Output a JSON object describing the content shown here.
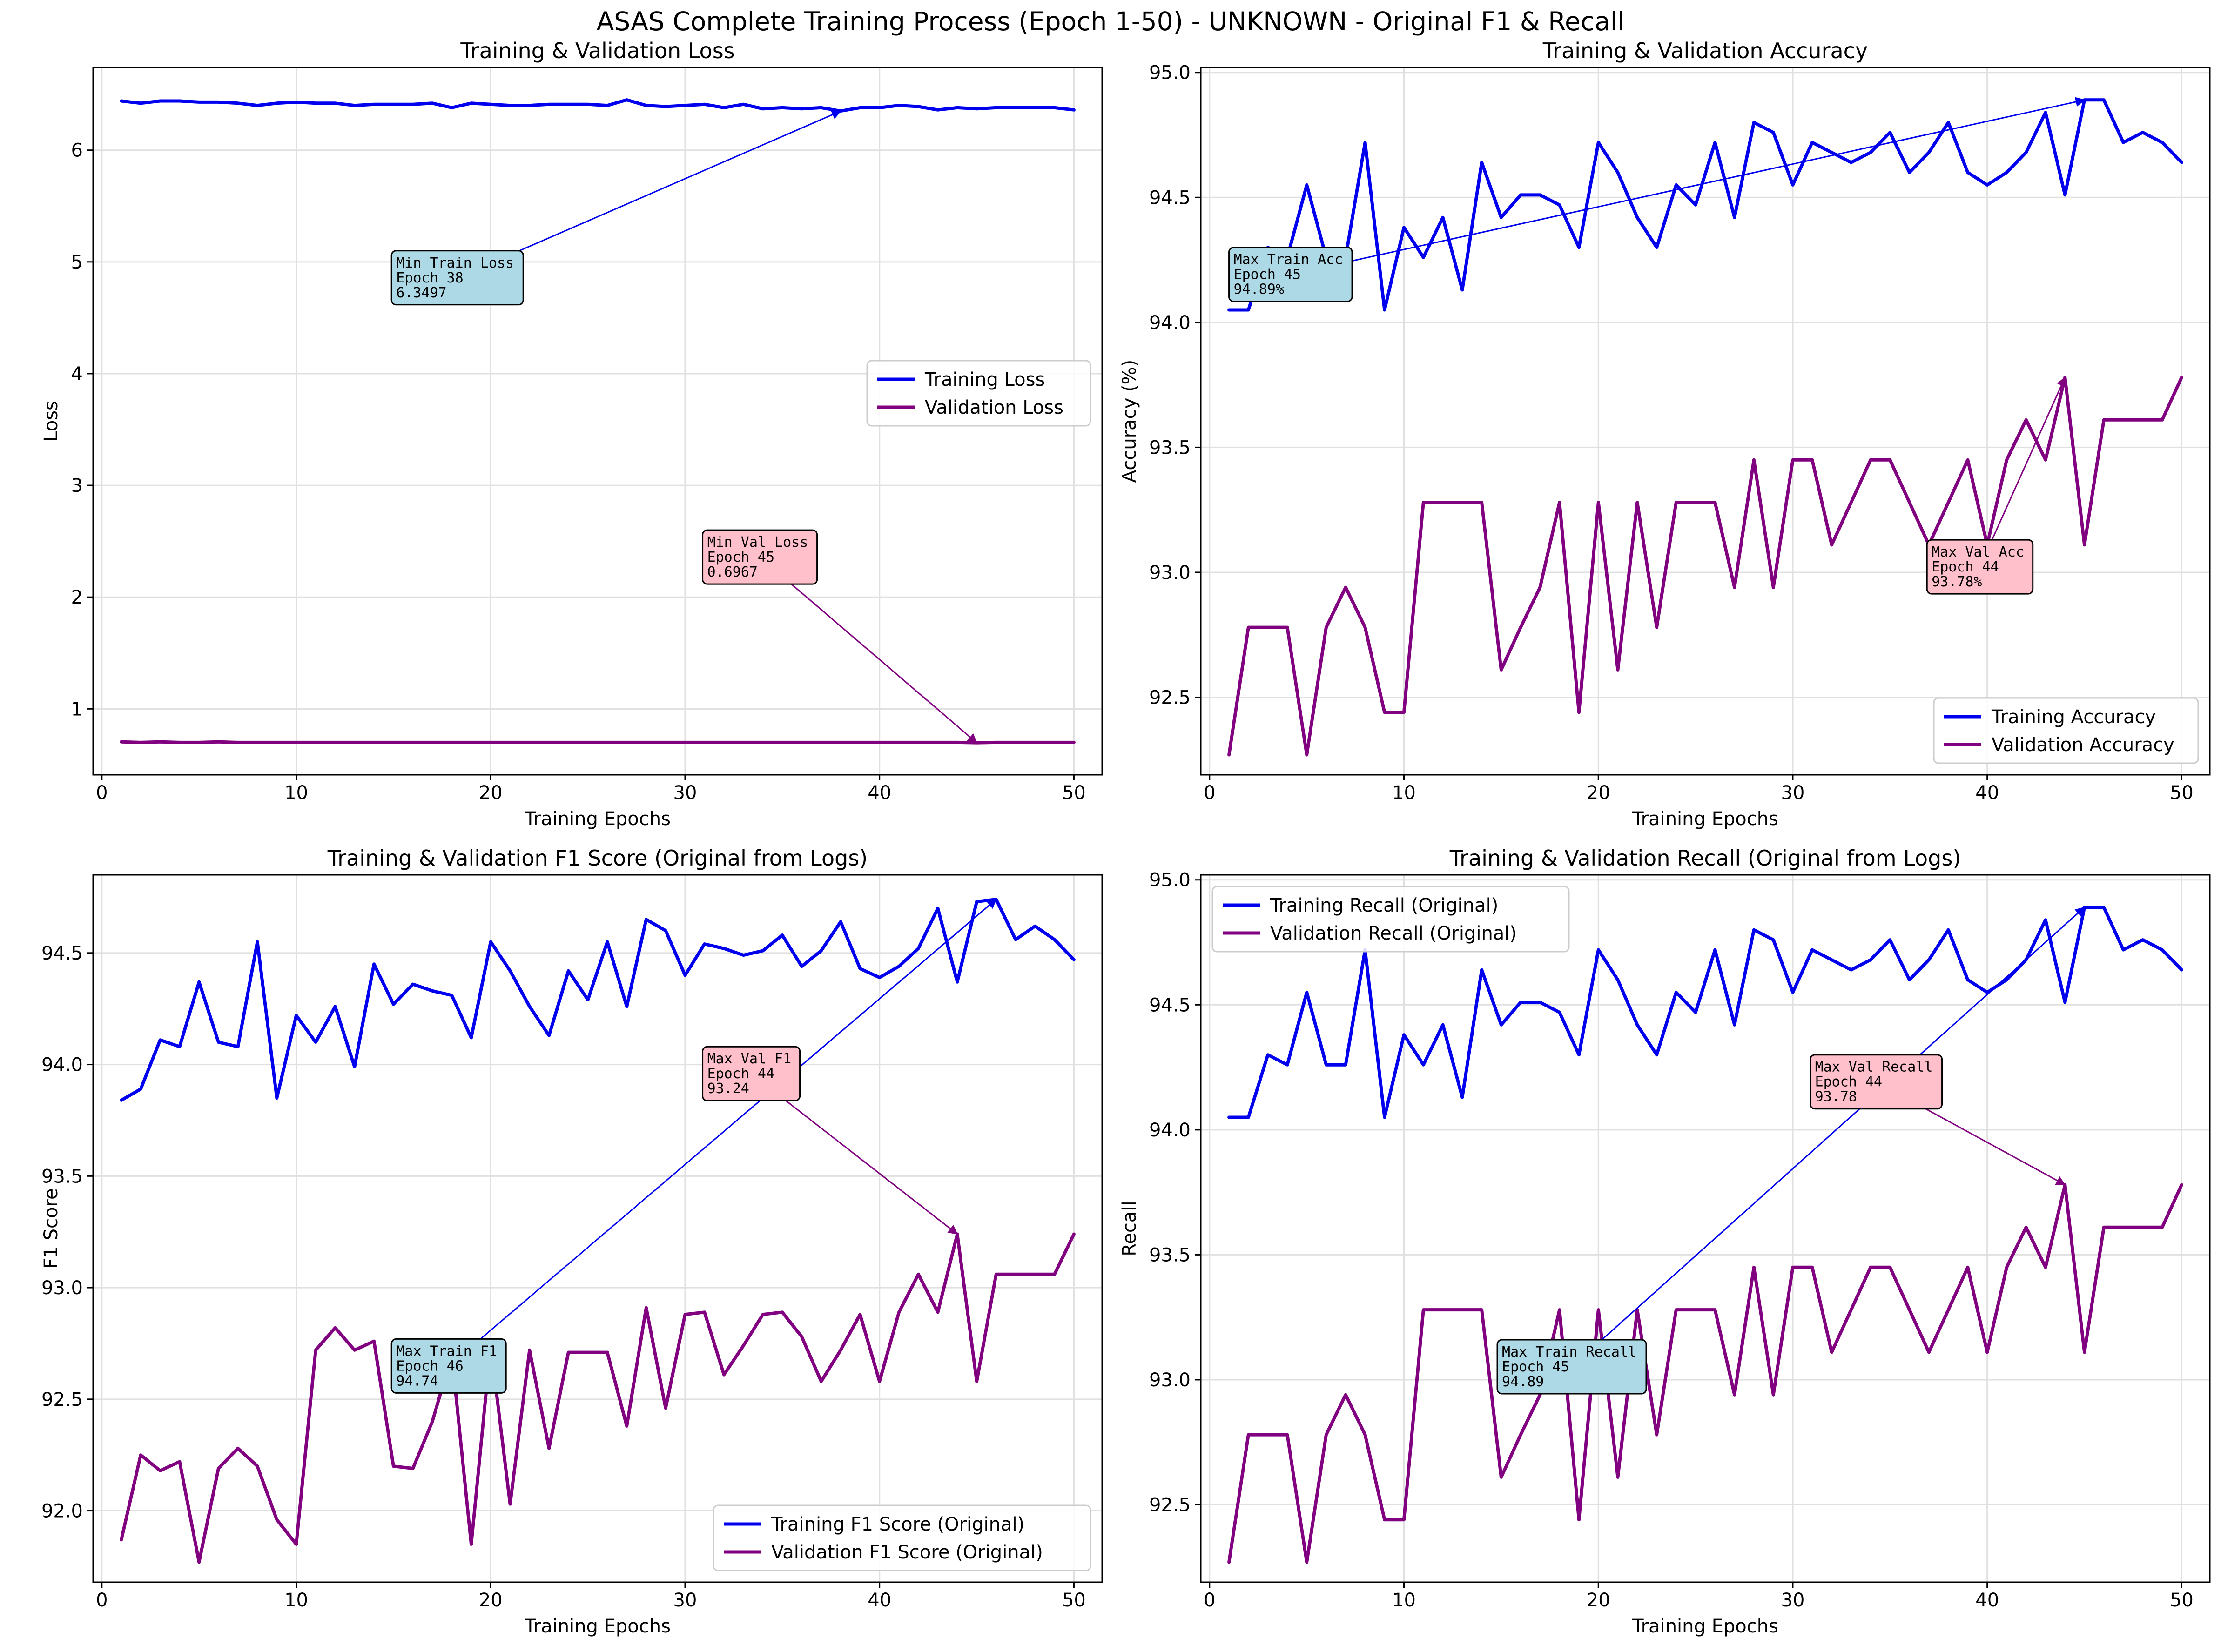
{
  "suptitle": "ASAS Complete Training Process (Epoch 1-50) - UNKNOWN - Original F1 & Recall",
  "colors": {
    "train": "#0000ee",
    "val": "#800080",
    "ann_train_bg": "#add8e6",
    "ann_val_bg": "#ffc0cb",
    "grid": "#e0e0e0"
  },
  "chart_data": [
    {
      "type": "line",
      "title": "Training & Validation Loss",
      "xlabel": "Training Epochs",
      "ylabel": "Loss",
      "xlim": [
        -0.45,
        51.45
      ],
      "ylim": [
        0.41,
        6.74
      ],
      "xticks": [
        0,
        10,
        20,
        30,
        40,
        50
      ],
      "yticks": [
        1,
        2,
        3,
        4,
        5,
        6
      ],
      "grid": true,
      "legend": "center-right",
      "series": [
        {
          "name": "Training Loss",
          "color": "train",
          "values": [
            6.44,
            6.42,
            6.44,
            6.44,
            6.43,
            6.43,
            6.42,
            6.4,
            6.42,
            6.43,
            6.42,
            6.42,
            6.4,
            6.41,
            6.41,
            6.41,
            6.42,
            6.38,
            6.42,
            6.41,
            6.4,
            6.4,
            6.41,
            6.41,
            6.41,
            6.4,
            6.45,
            6.4,
            6.39,
            6.4,
            6.41,
            6.38,
            6.41,
            6.37,
            6.38,
            6.37,
            6.38,
            6.35,
            6.38,
            6.38,
            6.4,
            6.39,
            6.36,
            6.38,
            6.37,
            6.38,
            6.38,
            6.38,
            6.38,
            6.36
          ]
        },
        {
          "name": "Validation Loss",
          "color": "val",
          "values": [
            0.705,
            0.7,
            0.705,
            0.7,
            0.7,
            0.705,
            0.7,
            0.7,
            0.7,
            0.7,
            0.7,
            0.7,
            0.7,
            0.7,
            0.7,
            0.7,
            0.7,
            0.7,
            0.7,
            0.7,
            0.7,
            0.7,
            0.7,
            0.7,
            0.7,
            0.7,
            0.7,
            0.7,
            0.7,
            0.7,
            0.7,
            0.7,
            0.7,
            0.7,
            0.7,
            0.7,
            0.7,
            0.7,
            0.7,
            0.7,
            0.7,
            0.7,
            0.7,
            0.7,
            0.697,
            0.7,
            0.7,
            0.7,
            0.7,
            0.7
          ]
        }
      ],
      "annotations": [
        {
          "text": [
            "Min Train Loss",
            "Epoch 38",
            "6.3497"
          ],
          "style": "train",
          "point": [
            38,
            6.3497
          ],
          "box_at": [
            14.9,
            5.1
          ]
        },
        {
          "text": [
            "Min Val Loss",
            "Epoch 45",
            "0.6967"
          ],
          "style": "val",
          "point": [
            45,
            0.6967
          ],
          "box_at": [
            30.9,
            2.6
          ]
        }
      ]
    },
    {
      "type": "line",
      "title": "Training & Validation Accuracy",
      "xlabel": "Training Epochs",
      "ylabel": "Accuracy (%)",
      "xlim": [
        -0.45,
        51.45
      ],
      "ylim": [
        92.19,
        95.02
      ],
      "xticks": [
        0,
        10,
        20,
        30,
        40,
        50
      ],
      "yticks": [
        92.5,
        93.0,
        93.5,
        94.0,
        94.5,
        95.0
      ],
      "ytick_labels": [
        "92.5",
        "93.0",
        "93.5",
        "94.0",
        "94.5",
        "95.0"
      ],
      "grid": true,
      "legend": "bottom-right",
      "series": [
        {
          "name": "Training Accuracy",
          "color": "train",
          "values": [
            94.05,
            94.05,
            94.3,
            94.26,
            94.55,
            94.26,
            94.26,
            94.72,
            94.05,
            94.38,
            94.26,
            94.42,
            94.13,
            94.64,
            94.42,
            94.51,
            94.51,
            94.47,
            94.3,
            94.72,
            94.6,
            94.42,
            94.3,
            94.55,
            94.47,
            94.72,
            94.42,
            94.8,
            94.76,
            94.55,
            94.72,
            94.68,
            94.64,
            94.68,
            94.76,
            94.6,
            94.68,
            94.8,
            94.6,
            94.55,
            94.6,
            94.68,
            94.84,
            94.51,
            94.89,
            94.89,
            94.72,
            94.76,
            94.72,
            94.64
          ]
        },
        {
          "name": "Validation Accuracy",
          "color": "val",
          "values": [
            92.27,
            92.78,
            92.78,
            92.78,
            92.27,
            92.78,
            92.94,
            92.78,
            92.44,
            92.44,
            93.28,
            93.28,
            93.28,
            93.28,
            92.61,
            92.78,
            92.94,
            93.28,
            92.44,
            93.28,
            92.61,
            93.28,
            92.78,
            93.28,
            93.28,
            93.28,
            92.94,
            93.45,
            92.94,
            93.45,
            93.45,
            93.11,
            93.28,
            93.45,
            93.45,
            93.28,
            93.11,
            93.28,
            93.45,
            93.11,
            93.45,
            93.61,
            93.45,
            93.78,
            93.11,
            93.61,
            93.61,
            93.61,
            93.61,
            93.78
          ]
        }
      ],
      "annotations": [
        {
          "text": [
            "Max Train Acc",
            "Epoch 45",
            "94.89%"
          ],
          "style": "train",
          "point": [
            45,
            94.89
          ],
          "box_at": [
            1.0,
            94.3
          ]
        },
        {
          "text": [
            "Max Val Acc",
            "Epoch 44",
            "93.78%"
          ],
          "style": "val",
          "point": [
            44,
            93.78
          ],
          "box_at": [
            36.9,
            93.13
          ]
        }
      ]
    },
    {
      "type": "line",
      "title": "Training & Validation F1 Score (Original from Logs)",
      "xlabel": "Training Epochs",
      "ylabel": "F1 Score",
      "xlim": [
        -0.45,
        51.45
      ],
      "ylim": [
        91.68,
        94.85
      ],
      "xticks": [
        0,
        10,
        20,
        30,
        40,
        50
      ],
      "yticks": [
        92.0,
        92.5,
        93.0,
        93.5,
        94.0,
        94.5
      ],
      "ytick_labels": [
        "92.0",
        "92.5",
        "93.0",
        "93.5",
        "94.0",
        "94.5"
      ],
      "grid": true,
      "legend": "bottom-right",
      "series": [
        {
          "name": "Training F1 Score (Original)",
          "color": "train",
          "values": [
            93.84,
            93.89,
            94.11,
            94.08,
            94.37,
            94.1,
            94.08,
            94.55,
            93.85,
            94.22,
            94.1,
            94.26,
            93.99,
            94.45,
            94.27,
            94.36,
            94.33,
            94.31,
            94.12,
            94.55,
            94.42,
            94.26,
            94.13,
            94.42,
            94.29,
            94.55,
            94.26,
            94.65,
            94.6,
            94.4,
            94.54,
            94.52,
            94.49,
            94.51,
            94.58,
            94.44,
            94.51,
            94.64,
            94.43,
            94.39,
            94.44,
            94.52,
            94.7,
            94.37,
            94.73,
            94.74,
            94.56,
            94.62,
            94.56,
            94.47
          ]
        },
        {
          "name": "Validation F1 Score (Original)",
          "color": "val",
          "values": [
            91.87,
            92.25,
            92.18,
            92.22,
            91.77,
            92.19,
            92.28,
            92.2,
            91.96,
            91.85,
            92.72,
            92.82,
            92.72,
            92.76,
            92.2,
            92.19,
            92.4,
            92.7,
            91.85,
            92.74,
            92.03,
            92.72,
            92.28,
            92.71,
            92.71,
            92.71,
            92.38,
            92.91,
            92.46,
            92.88,
            92.89,
            92.61,
            92.74,
            92.88,
            92.89,
            92.78,
            92.58,
            92.72,
            92.88,
            92.58,
            92.89,
            93.06,
            92.89,
            93.24,
            92.58,
            93.06,
            93.06,
            93.06,
            93.06,
            93.24
          ]
        }
      ],
      "annotations": [
        {
          "text": [
            "Max Train F1",
            "Epoch 46",
            "94.74"
          ],
          "style": "train",
          "point": [
            46,
            94.74
          ],
          "box_at": [
            14.9,
            92.77
          ]
        },
        {
          "text": [
            "Max Val F1",
            "Epoch 44",
            "93.24"
          ],
          "style": "val",
          "point": [
            44,
            93.24
          ],
          "box_at": [
            30.9,
            94.08
          ]
        }
      ]
    },
    {
      "type": "line",
      "title": "Training & Validation Recall (Original from Logs)",
      "xlabel": "Training Epochs",
      "ylabel": "Recall",
      "xlim": [
        -0.45,
        51.45
      ],
      "ylim": [
        92.19,
        95.02
      ],
      "xticks": [
        0,
        10,
        20,
        30,
        40,
        50
      ],
      "yticks": [
        92.5,
        93.0,
        93.5,
        94.0,
        94.5,
        95.0
      ],
      "ytick_labels": [
        "92.5",
        "93.0",
        "93.5",
        "94.0",
        "94.5",
        "95.0"
      ],
      "grid": true,
      "legend": "top-left",
      "series": [
        {
          "name": "Training Recall (Original)",
          "color": "train",
          "values": [
            94.05,
            94.05,
            94.3,
            94.26,
            94.55,
            94.26,
            94.26,
            94.72,
            94.05,
            94.38,
            94.26,
            94.42,
            94.13,
            94.64,
            94.42,
            94.51,
            94.51,
            94.47,
            94.3,
            94.72,
            94.6,
            94.42,
            94.3,
            94.55,
            94.47,
            94.72,
            94.42,
            94.8,
            94.76,
            94.55,
            94.72,
            94.68,
            94.64,
            94.68,
            94.76,
            94.6,
            94.68,
            94.8,
            94.6,
            94.55,
            94.6,
            94.68,
            94.84,
            94.51,
            94.89,
            94.89,
            94.72,
            94.76,
            94.72,
            94.64
          ]
        },
        {
          "name": "Validation Recall (Original)",
          "color": "val",
          "values": [
            92.27,
            92.78,
            92.78,
            92.78,
            92.27,
            92.78,
            92.94,
            92.78,
            92.44,
            92.44,
            93.28,
            93.28,
            93.28,
            93.28,
            92.61,
            92.78,
            92.94,
            93.28,
            92.44,
            93.28,
            92.61,
            93.28,
            92.78,
            93.28,
            93.28,
            93.28,
            92.94,
            93.45,
            92.94,
            93.45,
            93.45,
            93.11,
            93.28,
            93.45,
            93.45,
            93.28,
            93.11,
            93.28,
            93.45,
            93.11,
            93.45,
            93.61,
            93.45,
            93.78,
            93.11,
            93.61,
            93.61,
            93.61,
            93.61,
            93.78
          ]
        }
      ],
      "annotations": [
        {
          "text": [
            "Max Train Recall",
            "Epoch 45",
            "94.89"
          ],
          "style": "train",
          "point": [
            45,
            94.89
          ],
          "box_at": [
            14.8,
            93.16
          ]
        },
        {
          "text": [
            "Max Val Recall",
            "Epoch 44",
            "93.78"
          ],
          "style": "val",
          "point": [
            44,
            93.78
          ],
          "box_at": [
            30.9,
            94.3
          ]
        }
      ]
    }
  ]
}
